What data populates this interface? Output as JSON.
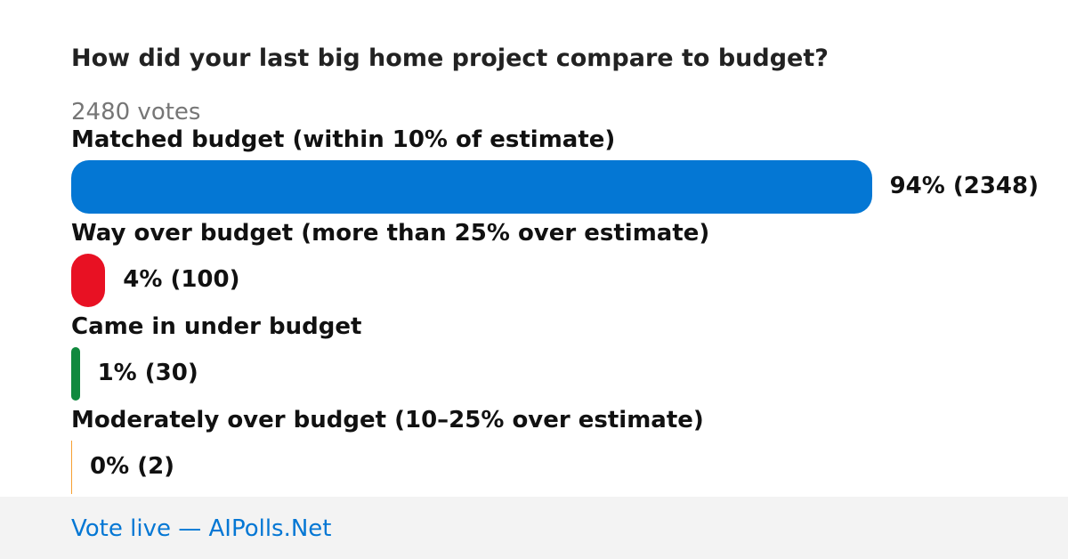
{
  "poll": {
    "title": "How did your last big home project compare to budget?",
    "votes_label": "2480 votes",
    "options": [
      {
        "label": "Matched budget (within 10% of estimate)",
        "percent": 94,
        "value_label": "94% (2348)",
        "color": "#0477d4"
      },
      {
        "label": "Way over budget (more than 25% over estimate)",
        "percent": 4,
        "value_label": "4% (100)",
        "color": "#e81123"
      },
      {
        "label": "Came in under budget",
        "percent": 1,
        "value_label": "1% (30)",
        "color": "#10893e"
      },
      {
        "label": "Moderately over budget (10–25% over estimate)",
        "percent": 0,
        "value_label": "0% (2)",
        "color": "#f7a032"
      }
    ],
    "footer": "Vote live — AIPolls.Net"
  }
}
